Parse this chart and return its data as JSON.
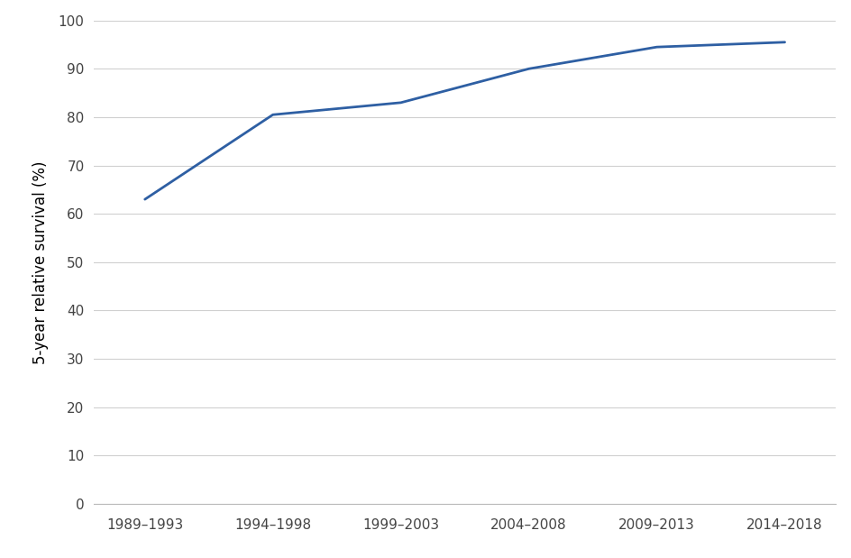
{
  "x_labels": [
    "1989–1993",
    "1994–1998",
    "1999–2003",
    "2004–2008",
    "2009–2013",
    "2014–2018"
  ],
  "x_values": [
    0,
    1,
    2,
    3,
    4,
    5
  ],
  "y_values": [
    63.0,
    80.5,
    83.0,
    90.0,
    94.5,
    95.5
  ],
  "line_color": "#2E5FA3",
  "line_width": 2.0,
  "ylabel": "5-year relative survival (%)",
  "ylim": [
    0,
    100
  ],
  "yticks": [
    0,
    10,
    20,
    30,
    40,
    50,
    60,
    70,
    80,
    90,
    100
  ],
  "background_color": "#ffffff",
  "plot_area_color": "#ffffff",
  "grid_color": "#d0d0d0",
  "tick_label_fontsize": 11,
  "ylabel_fontsize": 12,
  "xlim": [
    -0.4,
    5.4
  ]
}
